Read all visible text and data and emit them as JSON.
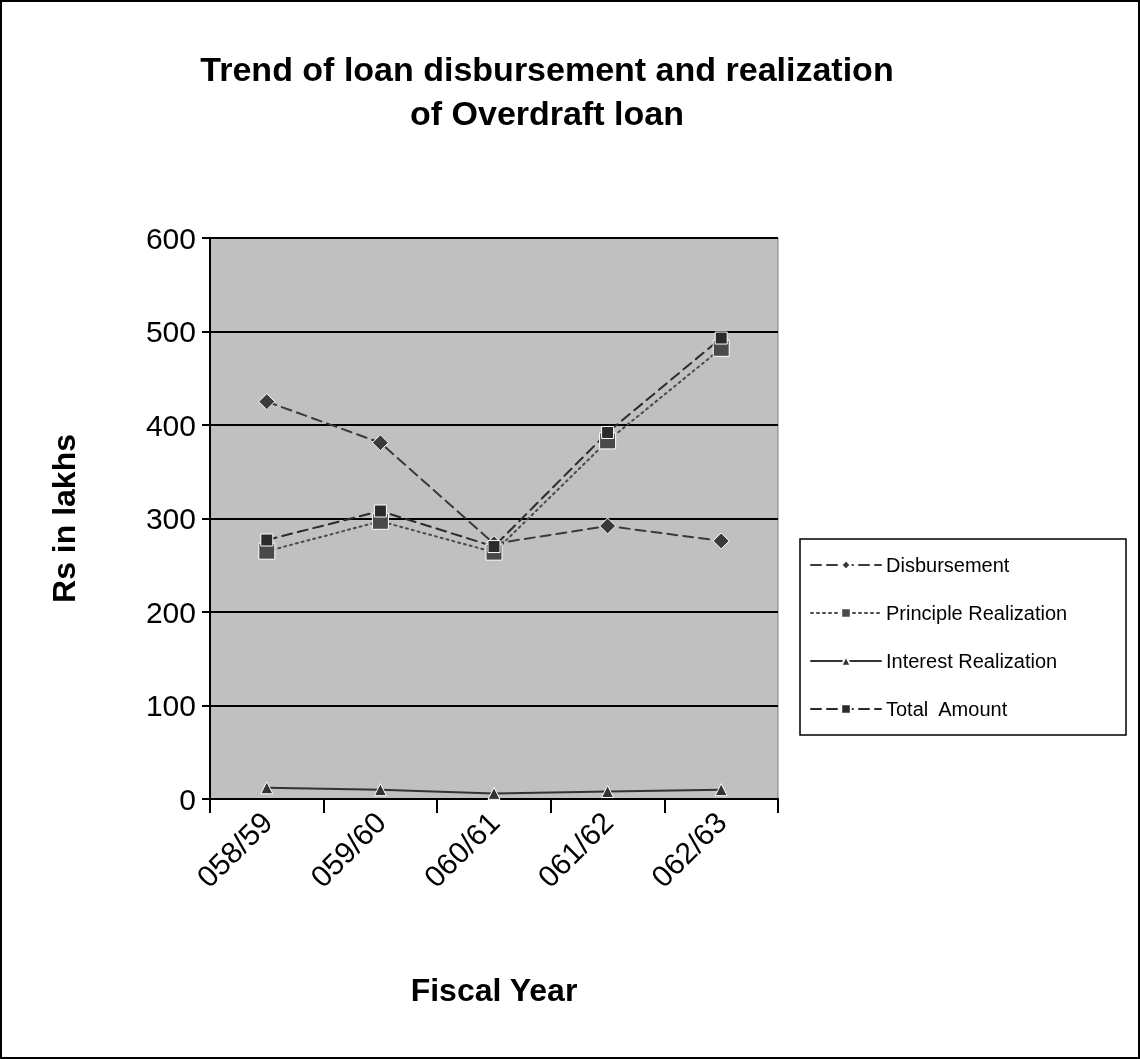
{
  "chart_data": {
    "type": "line",
    "title": "Trend of loan disbursement and realization\nof Overdraft loan",
    "xlabel": "Fiscal Year",
    "ylabel": "Rs in lakhs",
    "categories": [
      "058/59",
      "059/60",
      "060/61",
      "061/62",
      "062/63"
    ],
    "series": [
      {
        "name": "Disbursement",
        "color": "#3a3a3a",
        "marker": "diamond",
        "line_style": "dashed",
        "values": [
          425,
          381,
          273,
          292,
          276
        ]
      },
      {
        "name": "Principle Realization",
        "color": "#4a4a4a",
        "marker": "square",
        "line_style": "dotted",
        "values": [
          265,
          297,
          264,
          383,
          482
        ]
      },
      {
        "name": "Interest Realization",
        "color": "#333333",
        "marker": "triangle",
        "line_style": "solid",
        "values": [
          12,
          10,
          6,
          8,
          10
        ]
      },
      {
        "name": "Total  Amount",
        "color": "#2b2b2b",
        "marker": "square",
        "line_style": "dashed",
        "values": [
          277,
          308,
          270,
          392,
          493
        ]
      }
    ],
    "ylim": [
      0,
      600
    ],
    "yticks": [
      0,
      100,
      200,
      300,
      400,
      500,
      600
    ],
    "grid": "y",
    "legend": "right"
  }
}
